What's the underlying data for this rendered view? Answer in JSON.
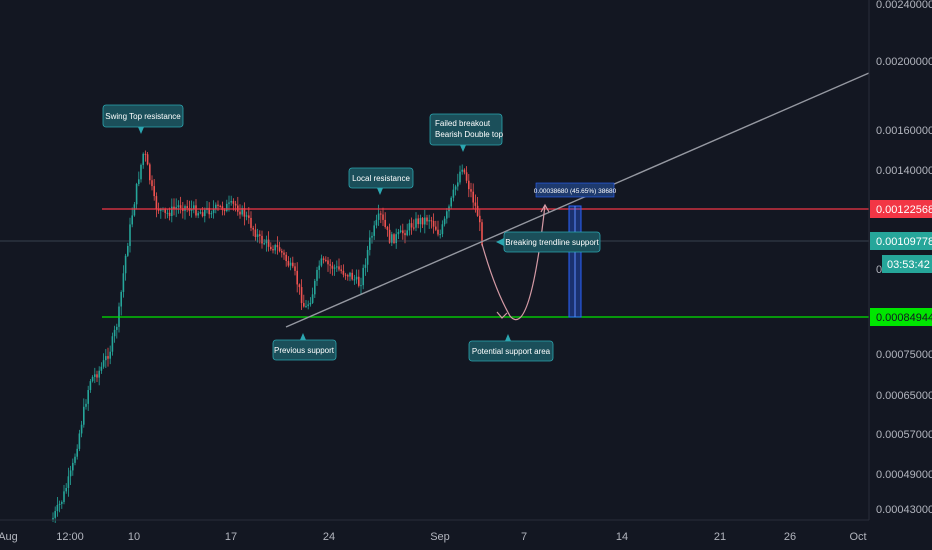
{
  "chart_data": {
    "type": "candlestick",
    "price_scale": "log",
    "grid": false,
    "y_ticks": [
      "0.00240000",
      "0.00200000",
      "0.00160000",
      "0.00140000",
      "0.00075000",
      "0.00065000",
      "0.00057000",
      "0.00049000",
      "0.00043000"
    ],
    "x_ticks": [
      "Aug",
      "12:00",
      "10",
      "17",
      "24",
      "Sep",
      "7",
      "14",
      "21",
      "26",
      "Oct"
    ],
    "price_badges": [
      {
        "label": "0.00122568",
        "bg": "#f23645",
        "fg": "#ffffff"
      },
      {
        "label": "0.00109778",
        "bg": "#26a69a",
        "fg": "#ffffff"
      },
      {
        "label": "03:53:42",
        "bg": "#26a69a",
        "fg": "#ffffff"
      },
      {
        "label": "0.00084944",
        "bg": "#00e600",
        "fg": "#131722"
      }
    ],
    "horizontal_lines": [
      {
        "price": 0.00122568,
        "color": "#f23645"
      },
      {
        "price": 0.00084944,
        "color": "#00e600"
      }
    ],
    "current_price": 0.00109778,
    "measurement_label": "0.00038680 (45.65%) 38680",
    "annotations": [
      {
        "id": "swing-top",
        "lines": [
          "Swing Top resistance"
        ]
      },
      {
        "id": "failed-breakout",
        "lines": [
          "Failed breakout",
          "Bearish Double top"
        ]
      },
      {
        "id": "local-resistance",
        "lines": [
          "Local resistance"
        ]
      },
      {
        "id": "breaking-trendline",
        "lines": [
          "Breaking trendline support"
        ]
      },
      {
        "id": "previous-support",
        "lines": [
          "Previous support"
        ]
      },
      {
        "id": "potential-support",
        "lines": [
          "Potential support area"
        ]
      }
    ],
    "colors": {
      "background": "#131722",
      "up": "#26a69a",
      "down": "#ef5350",
      "callout_fill": "#1b4f5a",
      "callout_border": "#2ba6b0",
      "trendline": "#b2b5be",
      "box": "#2962ff"
    }
  }
}
